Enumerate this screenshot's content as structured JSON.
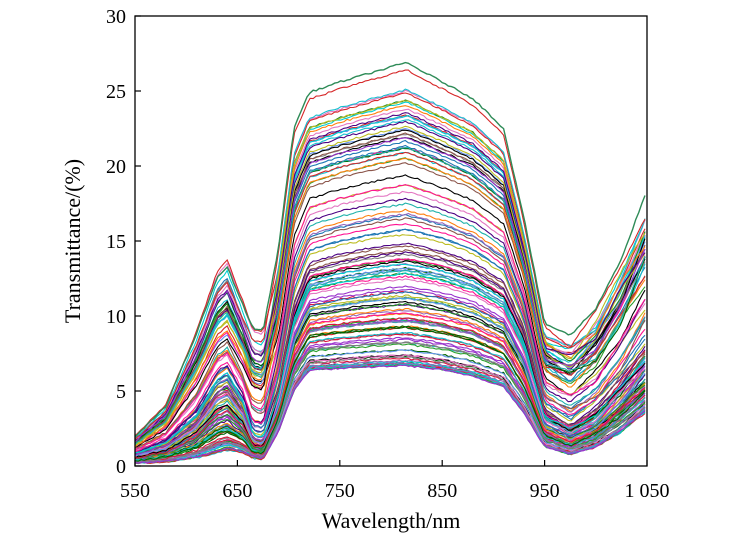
{
  "chart_data": {
    "type": "line",
    "xlabel": "Wavelength/nm",
    "ylabel": "Transmittance/(%)",
    "xlim": [
      550,
      1050
    ],
    "ylim": [
      0,
      30
    ],
    "x_ticks": [
      550,
      650,
      750,
      850,
      950,
      1050
    ],
    "x_tick_labels": [
      "550",
      "650",
      "750",
      "850",
      "950",
      "1 050"
    ],
    "y_ticks": [
      0,
      5,
      10,
      15,
      20,
      25,
      30
    ],
    "y_tick_labels": [
      "0",
      "5",
      "10",
      "15",
      "20",
      "25",
      "30"
    ],
    "grid": false,
    "legend": "none",
    "series_count": 120,
    "profile_x": [
      550,
      580,
      610,
      630,
      640,
      655,
      665,
      675,
      690,
      705,
      720,
      750,
      780,
      815,
      850,
      880,
      910,
      930,
      950,
      975,
      1000,
      1025,
      1050
    ],
    "profile_y_typical": [
      0.8,
      1.5,
      3.2,
      5.5,
      5.9,
      4.2,
      2.0,
      1.8,
      5.0,
      10.5,
      13.2,
      13.8,
      14.2,
      14.5,
      14.0,
      13.3,
      12.0,
      9.0,
      3.6,
      2.6,
      3.6,
      5.6,
      7.8
    ],
    "highest_series": [
      1.9,
      4.0,
      8.8,
      12.5,
      13.3,
      10.8,
      9.2,
      9.0,
      14.5,
      22.5,
      24.9,
      25.6,
      26.2,
      26.9,
      25.6,
      24.5,
      22.5,
      16.5,
      9.5,
      8.7,
      10.5,
      13.8,
      18.4
    ],
    "lowest_series": [
      0.2,
      0.3,
      0.6,
      1.0,
      1.2,
      1.0,
      0.6,
      0.5,
      2.3,
      5.0,
      6.4,
      6.5,
      6.6,
      6.7,
      6.4,
      6.0,
      5.3,
      3.5,
      1.3,
      0.8,
      1.3,
      2.4,
      3.8
    ],
    "colors": [
      "#1f77b4",
      "#d62728",
      "#2ca02c",
      "#9467bd",
      "#17becf",
      "#8c564b",
      "#ff7f0e",
      "#e377c2",
      "#228b22",
      "#000000",
      "#bcbd22",
      "#4b0082",
      "#20b2aa",
      "#dc143c",
      "#6495ed",
      "#7f7f7f",
      "#006400",
      "#ff1493",
      "#00ced1",
      "#9932cc"
    ]
  }
}
